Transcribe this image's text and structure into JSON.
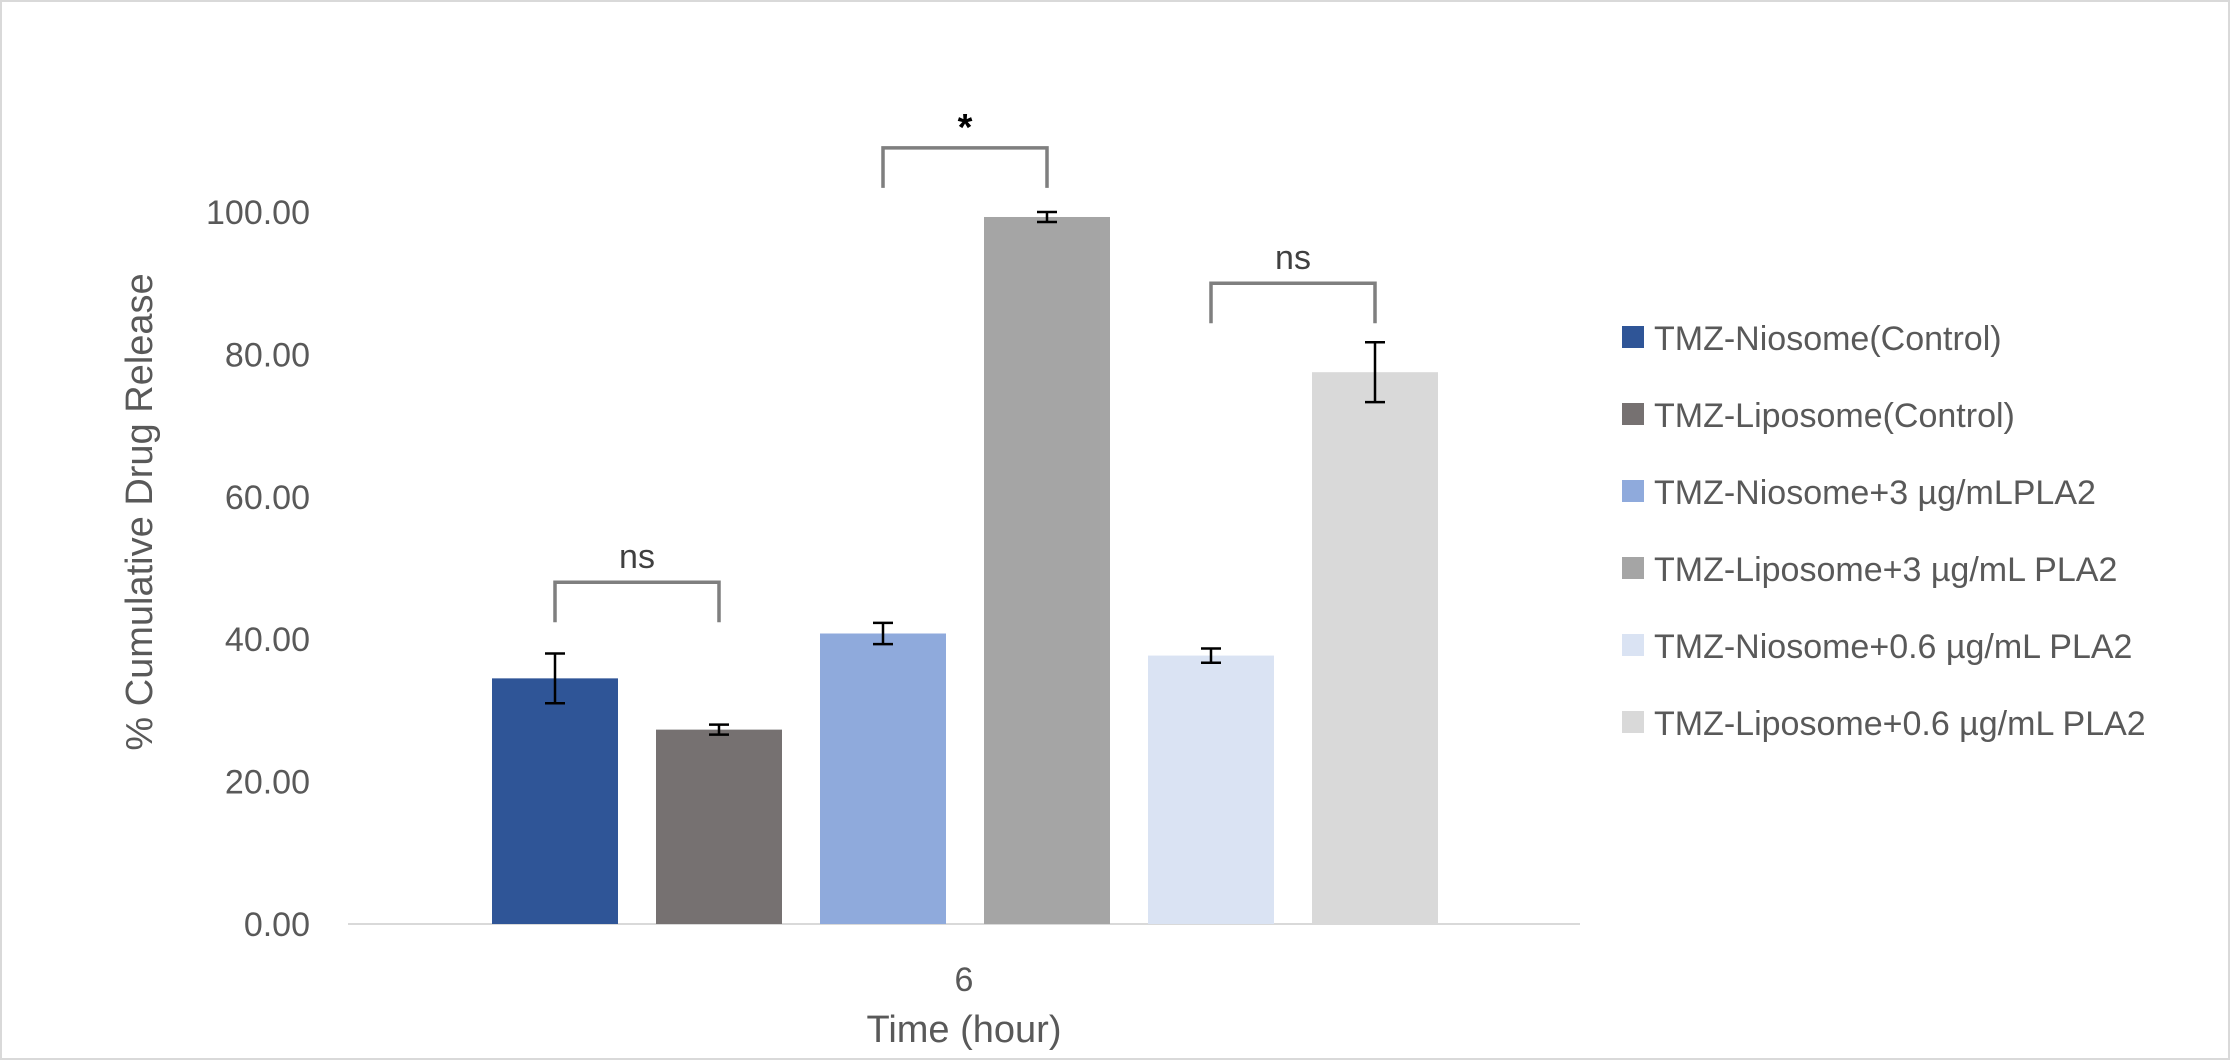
{
  "chart_data": {
    "type": "bar",
    "title": "",
    "xlabel": "Time (hour)",
    "ylabel": "% Cumulative Drug Release",
    "categories": [
      "6"
    ],
    "ylim": [
      0,
      100
    ],
    "ytick_labels": [
      "0.00",
      "20.00",
      "40.00",
      "60.00",
      "80.00",
      "100.00"
    ],
    "yticks": [
      0,
      20,
      40,
      60,
      80,
      100
    ],
    "grid": false,
    "legend": "right",
    "series": [
      {
        "name": "TMZ-Niosome(Control)",
        "values": [
          34.5
        ],
        "error": [
          3.5
        ],
        "color": "#2f5597"
      },
      {
        "name": "TMZ-Liposome(Control)",
        "values": [
          27.3
        ],
        "error": [
          0.7
        ],
        "color": "#767171"
      },
      {
        "name": "TMZ-Niosome+3 µg/mLPLA2",
        "values": [
          40.8
        ],
        "error": [
          1.5
        ],
        "color": "#8faadc"
      },
      {
        "name": "TMZ-Liposome+3 µg/mL PLA2",
        "values": [
          99.3
        ],
        "error": [
          0.7
        ],
        "color": "#a5a5a5"
      },
      {
        "name": "TMZ-Niosome+0.6 µg/mL PLA2",
        "values": [
          37.7
        ],
        "error": [
          1.0
        ],
        "color": "#dae3f3"
      },
      {
        "name": "TMZ-Liposome+0.6 µg/mL PLA2",
        "values": [
          77.5
        ],
        "error": [
          4.2
        ],
        "color": "#d9d9d9"
      }
    ],
    "annotations": [
      {
        "label": "ns",
        "from_series": 0,
        "to_series": 1,
        "level": 48
      },
      {
        "label": "*",
        "from_series": 2,
        "to_series": 3,
        "level": 109
      },
      {
        "label": "ns",
        "from_series": 4,
        "to_series": 5,
        "level": 90
      }
    ]
  }
}
